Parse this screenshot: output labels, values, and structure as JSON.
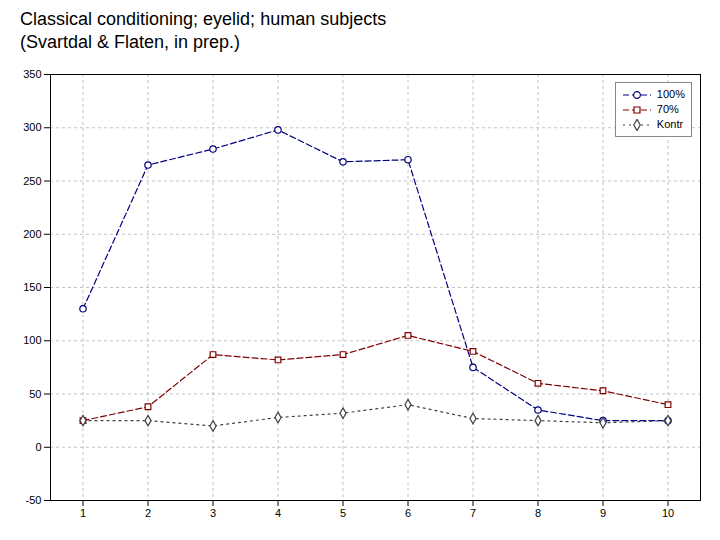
{
  "chart_data": {
    "type": "line",
    "title": "Classical conditioning; eyelid; human subjects",
    "subtitle": "(Svartdal & Flaten, in prep.)",
    "x": [
      1,
      2,
      3,
      4,
      5,
      6,
      7,
      8,
      9,
      10
    ],
    "series": [
      {
        "name": "100%",
        "color": "#000080",
        "marker": "circle",
        "line_style": "dashed",
        "values": [
          130,
          265,
          280,
          298,
          268,
          270,
          75,
          35,
          25,
          25
        ]
      },
      {
        "name": "70%",
        "color": "#800000",
        "marker": "square",
        "line_style": "dashed",
        "values": [
          25,
          38,
          87,
          82,
          87,
          105,
          90,
          60,
          53,
          40
        ]
      },
      {
        "name": "Kontr",
        "color": "#404040",
        "marker": "diamond",
        "line_style": "dotted",
        "values": [
          25,
          25,
          20,
          28,
          32,
          40,
          27,
          25,
          23,
          25
        ]
      }
    ],
    "xlim": [
      0.5,
      10.5
    ],
    "xticks": [
      1,
      2,
      3,
      4,
      5,
      6,
      7,
      8,
      9,
      10
    ],
    "ylim": [
      -50,
      350
    ],
    "yticks": [
      -50,
      0,
      50,
      100,
      150,
      200,
      250,
      300,
      350
    ],
    "grid": true,
    "legend": "upper right"
  }
}
